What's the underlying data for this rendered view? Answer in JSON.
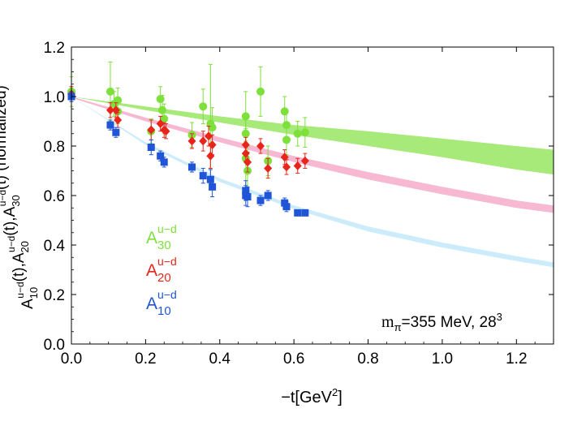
{
  "chart_data": {
    "type": "scatter",
    "title": "",
    "xlabel": "−t[GeV",
    "xlabel_sup": "2",
    "xlabel_end": "]",
    "ylabel_parts": [
      {
        "t": "A",
        "sub": "10",
        "sup": "u−d"
      },
      {
        "t": "(t),A",
        "sub": "20",
        "sup": "u−d"
      },
      {
        "t": "(t),A",
        "sub": "30",
        "sup": "u−d"
      },
      {
        "t": "(t) (normalized)"
      }
    ],
    "xlim": [
      0.0,
      1.3
    ],
    "ylim": [
      0.0,
      1.2
    ],
    "x_ticks": [
      "0.0",
      "0.2",
      "0.4",
      "0.6",
      "0.8",
      "1.0",
      "1.2"
    ],
    "y_ticks": [
      "0.0",
      "0.2",
      "0.4",
      "0.6",
      "0.8",
      "1.0",
      "1.2"
    ],
    "x_tick_values": [
      0.0,
      0.2,
      0.4,
      0.6,
      0.8,
      1.0,
      1.2
    ],
    "y_tick_values": [
      0.0,
      0.2,
      0.4,
      0.6,
      0.8,
      1.0,
      1.2
    ],
    "annotation": {
      "main": "m",
      "sub": "π",
      "rest": "=355 MeV, 28",
      "sup": "3"
    },
    "legend_location": "left-middle",
    "series": [
      {
        "name": "A30",
        "label": "A",
        "sub": "30",
        "sup": "u−d",
        "color": "#7ee03a",
        "band_color": "#a8ea7a",
        "marker": "circle",
        "band": {
          "x": [
            0.0,
            0.2,
            0.4,
            0.6,
            0.8,
            1.0,
            1.2,
            1.3
          ],
          "lo": [
            1.0,
            0.945,
            0.895,
            0.845,
            0.8,
            0.755,
            0.705,
            0.685
          ],
          "hi": [
            1.0,
            0.96,
            0.92,
            0.885,
            0.86,
            0.83,
            0.8,
            0.785
          ]
        },
        "points": [
          {
            "x": 0.0,
            "y": 1.02,
            "err": 0.06
          },
          {
            "x": 0.105,
            "y": 1.02,
            "err": 0.12
          },
          {
            "x": 0.115,
            "y": 0.97,
            "err": 0.05
          },
          {
            "x": 0.125,
            "y": 0.985,
            "err": 0.05
          },
          {
            "x": 0.125,
            "y": 0.94,
            "err": 0.05
          },
          {
            "x": 0.215,
            "y": 0.86,
            "err": 0.05
          },
          {
            "x": 0.24,
            "y": 0.99,
            "err": 0.05
          },
          {
            "x": 0.245,
            "y": 0.945,
            "err": 0.06
          },
          {
            "x": 0.25,
            "y": 0.91,
            "err": 0.06
          },
          {
            "x": 0.325,
            "y": 0.845,
            "err": 0.05
          },
          {
            "x": 0.355,
            "y": 0.96,
            "err": 0.07
          },
          {
            "x": 0.375,
            "y": 0.89,
            "err": 0.24
          },
          {
            "x": 0.38,
            "y": 0.875,
            "err": 0.08
          },
          {
            "x": 0.47,
            "y": 0.92,
            "err": 0.1
          },
          {
            "x": 0.47,
            "y": 0.85,
            "err": 0.08
          },
          {
            "x": 0.47,
            "y": 0.75,
            "err": 0.12
          },
          {
            "x": 0.475,
            "y": 0.7,
            "err": 0.1
          },
          {
            "x": 0.51,
            "y": 1.02,
            "err": 0.1
          },
          {
            "x": 0.53,
            "y": 0.74,
            "err": 0.06
          },
          {
            "x": 0.575,
            "y": 0.94,
            "err": 0.06
          },
          {
            "x": 0.58,
            "y": 0.885,
            "err": 0.06
          },
          {
            "x": 0.58,
            "y": 0.825,
            "err": 0.06
          },
          {
            "x": 0.61,
            "y": 0.85,
            "err": 0.05
          },
          {
            "x": 0.63,
            "y": 0.855,
            "err": 0.06
          }
        ]
      },
      {
        "name": "A20",
        "label": "A",
        "sub": "20",
        "sup": "u−d",
        "color": "#e8251b",
        "band_color": "#f7b8d2",
        "marker": "diamond",
        "band": {
          "x": [
            0.0,
            0.2,
            0.4,
            0.6,
            0.8,
            1.0,
            1.2,
            1.3
          ],
          "lo": [
            0.995,
            0.9,
            0.815,
            0.735,
            0.665,
            0.605,
            0.55,
            0.53
          ],
          "hi": [
            1.0,
            0.915,
            0.835,
            0.76,
            0.695,
            0.635,
            0.58,
            0.56
          ]
        },
        "points": [
          {
            "x": 0.0,
            "y": 1.01,
            "err": 0.03
          },
          {
            "x": 0.105,
            "y": 0.945,
            "err": 0.03
          },
          {
            "x": 0.12,
            "y": 0.945,
            "err": 0.03
          },
          {
            "x": 0.125,
            "y": 0.905,
            "err": 0.03
          },
          {
            "x": 0.215,
            "y": 0.865,
            "err": 0.04
          },
          {
            "x": 0.24,
            "y": 0.89,
            "err": 0.03
          },
          {
            "x": 0.25,
            "y": 0.865,
            "err": 0.03
          },
          {
            "x": 0.255,
            "y": 0.86,
            "err": 0.03
          },
          {
            "x": 0.325,
            "y": 0.82,
            "err": 0.03
          },
          {
            "x": 0.355,
            "y": 0.82,
            "err": 0.04
          },
          {
            "x": 0.37,
            "y": 0.84,
            "err": 0.04
          },
          {
            "x": 0.375,
            "y": 0.76,
            "err": 0.05
          },
          {
            "x": 0.38,
            "y": 0.805,
            "err": 0.04
          },
          {
            "x": 0.47,
            "y": 0.805,
            "err": 0.03
          },
          {
            "x": 0.47,
            "y": 0.77,
            "err": 0.03
          },
          {
            "x": 0.475,
            "y": 0.735,
            "err": 0.04
          },
          {
            "x": 0.51,
            "y": 0.8,
            "err": 0.03
          },
          {
            "x": 0.53,
            "y": 0.71,
            "err": 0.04
          },
          {
            "x": 0.575,
            "y": 0.755,
            "err": 0.03
          },
          {
            "x": 0.58,
            "y": 0.715,
            "err": 0.03
          },
          {
            "x": 0.61,
            "y": 0.72,
            "err": 0.03
          },
          {
            "x": 0.63,
            "y": 0.74,
            "err": 0.03
          }
        ]
      },
      {
        "name": "A10",
        "label": "A",
        "sub": "10",
        "sup": "u−d",
        "color": "#2155d8",
        "band_color": "#ccecfb",
        "marker": "square",
        "band": {
          "x": [
            0.0,
            0.2,
            0.4,
            0.6,
            0.8,
            1.0,
            1.2,
            1.3
          ],
          "lo": [
            1.0,
            0.805,
            0.655,
            0.545,
            0.455,
            0.39,
            0.335,
            0.31
          ],
          "hi": [
            1.0,
            0.815,
            0.67,
            0.56,
            0.475,
            0.41,
            0.355,
            0.33
          ]
        },
        "points": [
          {
            "x": 0.0,
            "y": 1.0,
            "err": 0.02
          },
          {
            "x": 0.105,
            "y": 0.885,
            "err": 0.02
          },
          {
            "x": 0.12,
            "y": 0.855,
            "err": 0.02
          },
          {
            "x": 0.215,
            "y": 0.795,
            "err": 0.03
          },
          {
            "x": 0.24,
            "y": 0.76,
            "err": 0.02
          },
          {
            "x": 0.25,
            "y": 0.735,
            "err": 0.02
          },
          {
            "x": 0.325,
            "y": 0.715,
            "err": 0.02
          },
          {
            "x": 0.355,
            "y": 0.68,
            "err": 0.03
          },
          {
            "x": 0.375,
            "y": 0.665,
            "err": 0.04
          },
          {
            "x": 0.38,
            "y": 0.635,
            "err": 0.04
          },
          {
            "x": 0.47,
            "y": 0.62,
            "err": 0.04
          },
          {
            "x": 0.47,
            "y": 0.6,
            "err": 0.04
          },
          {
            "x": 0.475,
            "y": 0.595,
            "err": 0.04
          },
          {
            "x": 0.51,
            "y": 0.58,
            "err": 0.02
          },
          {
            "x": 0.53,
            "y": 0.6,
            "err": 0.02
          },
          {
            "x": 0.575,
            "y": 0.57,
            "err": 0.02
          },
          {
            "x": 0.58,
            "y": 0.555,
            "err": 0.02
          },
          {
            "x": 0.61,
            "y": 0.53,
            "err": 0.01
          },
          {
            "x": 0.63,
            "y": 0.53,
            "err": 0.01
          }
        ]
      }
    ]
  }
}
